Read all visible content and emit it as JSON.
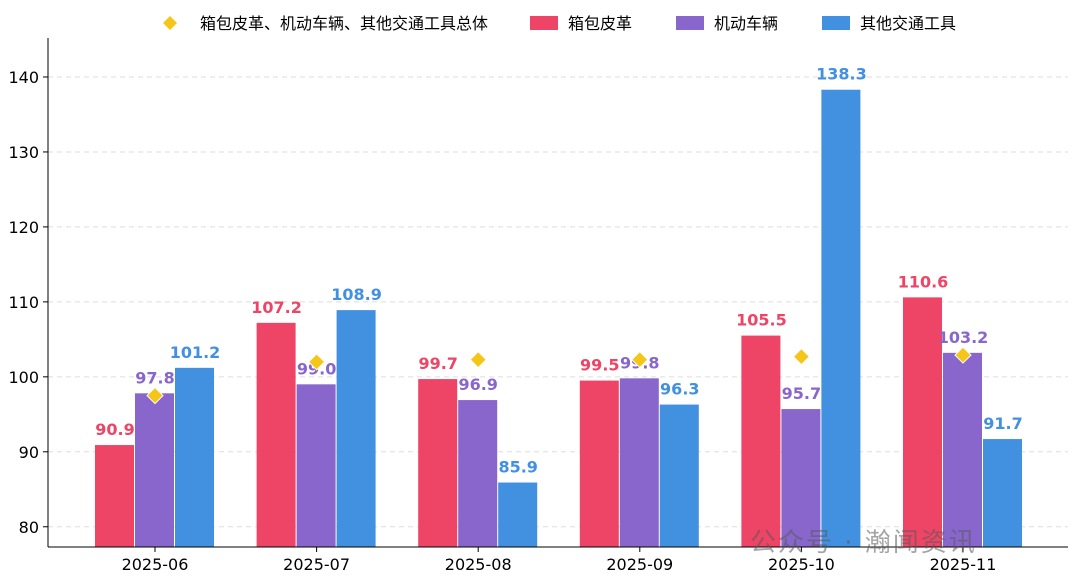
{
  "chart_data": {
    "type": "bar",
    "categories": [
      "2025-06",
      "2025-07",
      "2025-08",
      "2025-09",
      "2025-10",
      "2025-11"
    ],
    "series": [
      {
        "name": "箱包皮革",
        "color": "#EE4466",
        "values": [
          90.9,
          107.2,
          99.7,
          99.5,
          105.5,
          110.6
        ]
      },
      {
        "name": "机动车辆",
        "color": "#8866CC",
        "values": [
          97.8,
          99.0,
          96.9,
          99.8,
          95.7,
          103.2
        ]
      },
      {
        "name": "其他交通工具",
        "color": "#4290E0",
        "values": [
          101.2,
          108.9,
          85.9,
          96.3,
          138.3,
          91.7
        ]
      }
    ],
    "markers": {
      "name": "箱包皮革、机动车辆、其他交通工具总体",
      "color": "#F5C518",
      "shape": "diamond",
      "values": [
        97.5,
        102.0,
        102.3,
        102.3,
        102.7,
        102.9
      ]
    },
    "yticks": [
      80,
      90,
      100,
      110,
      120,
      130,
      140
    ],
    "ylim": [
      77.3,
      145.2
    ],
    "grid": true,
    "legend": "top"
  },
  "watermark": "公众号 · 瀚闻资讯"
}
